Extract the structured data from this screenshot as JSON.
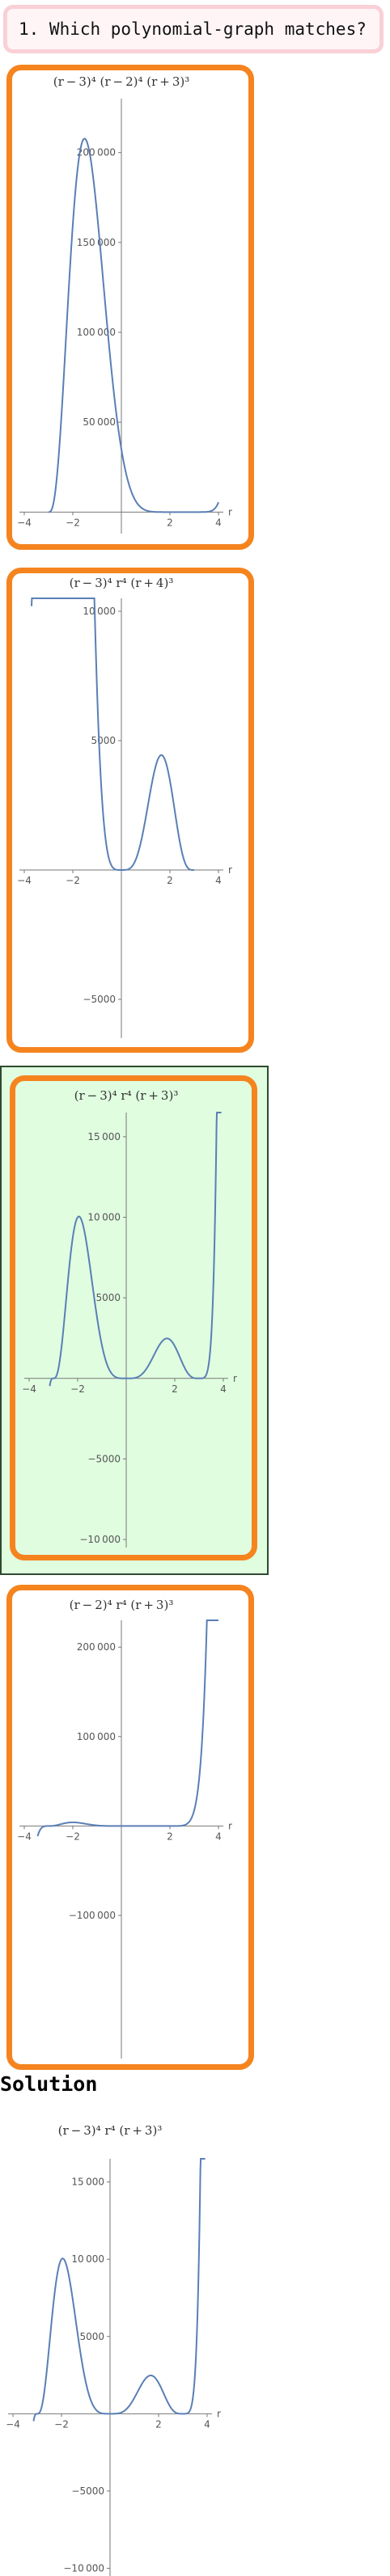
{
  "question": {
    "text": "1. Which polynomial-graph matches?"
  },
  "solution": {
    "heading": "Solution"
  },
  "chart_data": [
    {
      "id": "choice-1",
      "type": "line",
      "title": "(r − 3)⁴ (r − 2)⁴ (r + 3)³",
      "xlabel": "r",
      "xlim": [
        -4.2,
        4.2
      ],
      "ylim": [
        -12000,
        230000
      ],
      "xticks": [
        -4,
        -2,
        2,
        4
      ],
      "xtick_labels": [
        "−4",
        "−2",
        "2",
        "4"
      ],
      "yticks": [
        50000,
        100000,
        150000,
        200000
      ],
      "ytick_labels": [
        "50 000",
        "100 000",
        "150 000",
        "200 000"
      ],
      "roots": [
        {
          "r": 3,
          "m": 4
        },
        {
          "r": 2,
          "m": 4
        },
        {
          "r": -3,
          "m": 3
        }
      ],
      "domain": [
        -3,
        4
      ],
      "correct": false
    },
    {
      "id": "choice-2",
      "type": "line",
      "title": "(r − 3)⁴ r⁴ (r + 4)³",
      "xlabel": "r",
      "xlim": [
        -4.2,
        4.2
      ],
      "ylim": [
        -6500,
        10500
      ],
      "xticks": [
        -4,
        -2,
        2,
        4
      ],
      "xtick_labels": [
        "−4",
        "−2",
        "2",
        "4"
      ],
      "yticks": [
        -5000,
        5000,
        10000
      ],
      "ytick_labels": [
        "−5000",
        "5000",
        "10 000"
      ],
      "roots": [
        {
          "r": 3,
          "m": 4
        },
        {
          "r": 0,
          "m": 4
        },
        {
          "r": -4,
          "m": 3
        }
      ],
      "domain": [
        -3.7,
        3
      ],
      "correct": false
    },
    {
      "id": "choice-3",
      "type": "line",
      "title": "(r − 3)⁴ r⁴ (r + 3)³",
      "xlabel": "r",
      "xlim": [
        -4.2,
        4.2
      ],
      "ylim": [
        -10500,
        16500
      ],
      "xticks": [
        -4,
        -2,
        2,
        4
      ],
      "xtick_labels": [
        "−4",
        "−2",
        "2",
        "4"
      ],
      "yticks": [
        -10000,
        -5000,
        5000,
        10000,
        15000
      ],
      "ytick_labels": [
        "−10 000",
        "−5000",
        "5000",
        "10 000",
        "15 000"
      ],
      "roots": [
        {
          "r": 3,
          "m": 4
        },
        {
          "r": 0,
          "m": 4
        },
        {
          "r": -3,
          "m": 3
        }
      ],
      "domain": [
        -3.15,
        3.92
      ],
      "correct": true
    },
    {
      "id": "choice-4",
      "type": "line",
      "title": "(r − 2)⁴ r⁴ (r + 3)³",
      "xlabel": "r",
      "xlim": [
        -4.2,
        4.2
      ],
      "ylim": [
        -260000,
        230000
      ],
      "xticks": [
        -4,
        -2,
        2,
        4
      ],
      "xtick_labels": [
        "−4",
        "−2",
        "2",
        "4"
      ],
      "yticks": [
        -100000,
        100000,
        200000
      ],
      "ytick_labels": [
        "−100 000",
        "100 000",
        "200 000"
      ],
      "roots": [
        {
          "r": 2,
          "m": 4
        },
        {
          "r": 0,
          "m": 4
        },
        {
          "r": -3,
          "m": 3
        }
      ],
      "domain": [
        -3.45,
        4
      ],
      "correct": false
    },
    {
      "id": "solution",
      "type": "line",
      "title": "(r − 3)⁴ r⁴ (r + 3)³",
      "xlabel": "r",
      "xlim": [
        -4.2,
        4.2
      ],
      "ylim": [
        -10500,
        16500
      ],
      "xticks": [
        -4,
        -2,
        2,
        4
      ],
      "xtick_labels": [
        "−4",
        "−2",
        "2",
        "4"
      ],
      "yticks": [
        -10000,
        -5000,
        5000,
        10000,
        15000
      ],
      "ytick_labels": [
        "−10 000",
        "−5000",
        "5000",
        "10 000",
        "15 000"
      ],
      "roots": [
        {
          "r": 3,
          "m": 4
        },
        {
          "r": 0,
          "m": 4
        },
        {
          "r": -3,
          "m": 3
        }
      ],
      "domain": [
        -3.15,
        3.92
      ],
      "correct": true
    }
  ]
}
